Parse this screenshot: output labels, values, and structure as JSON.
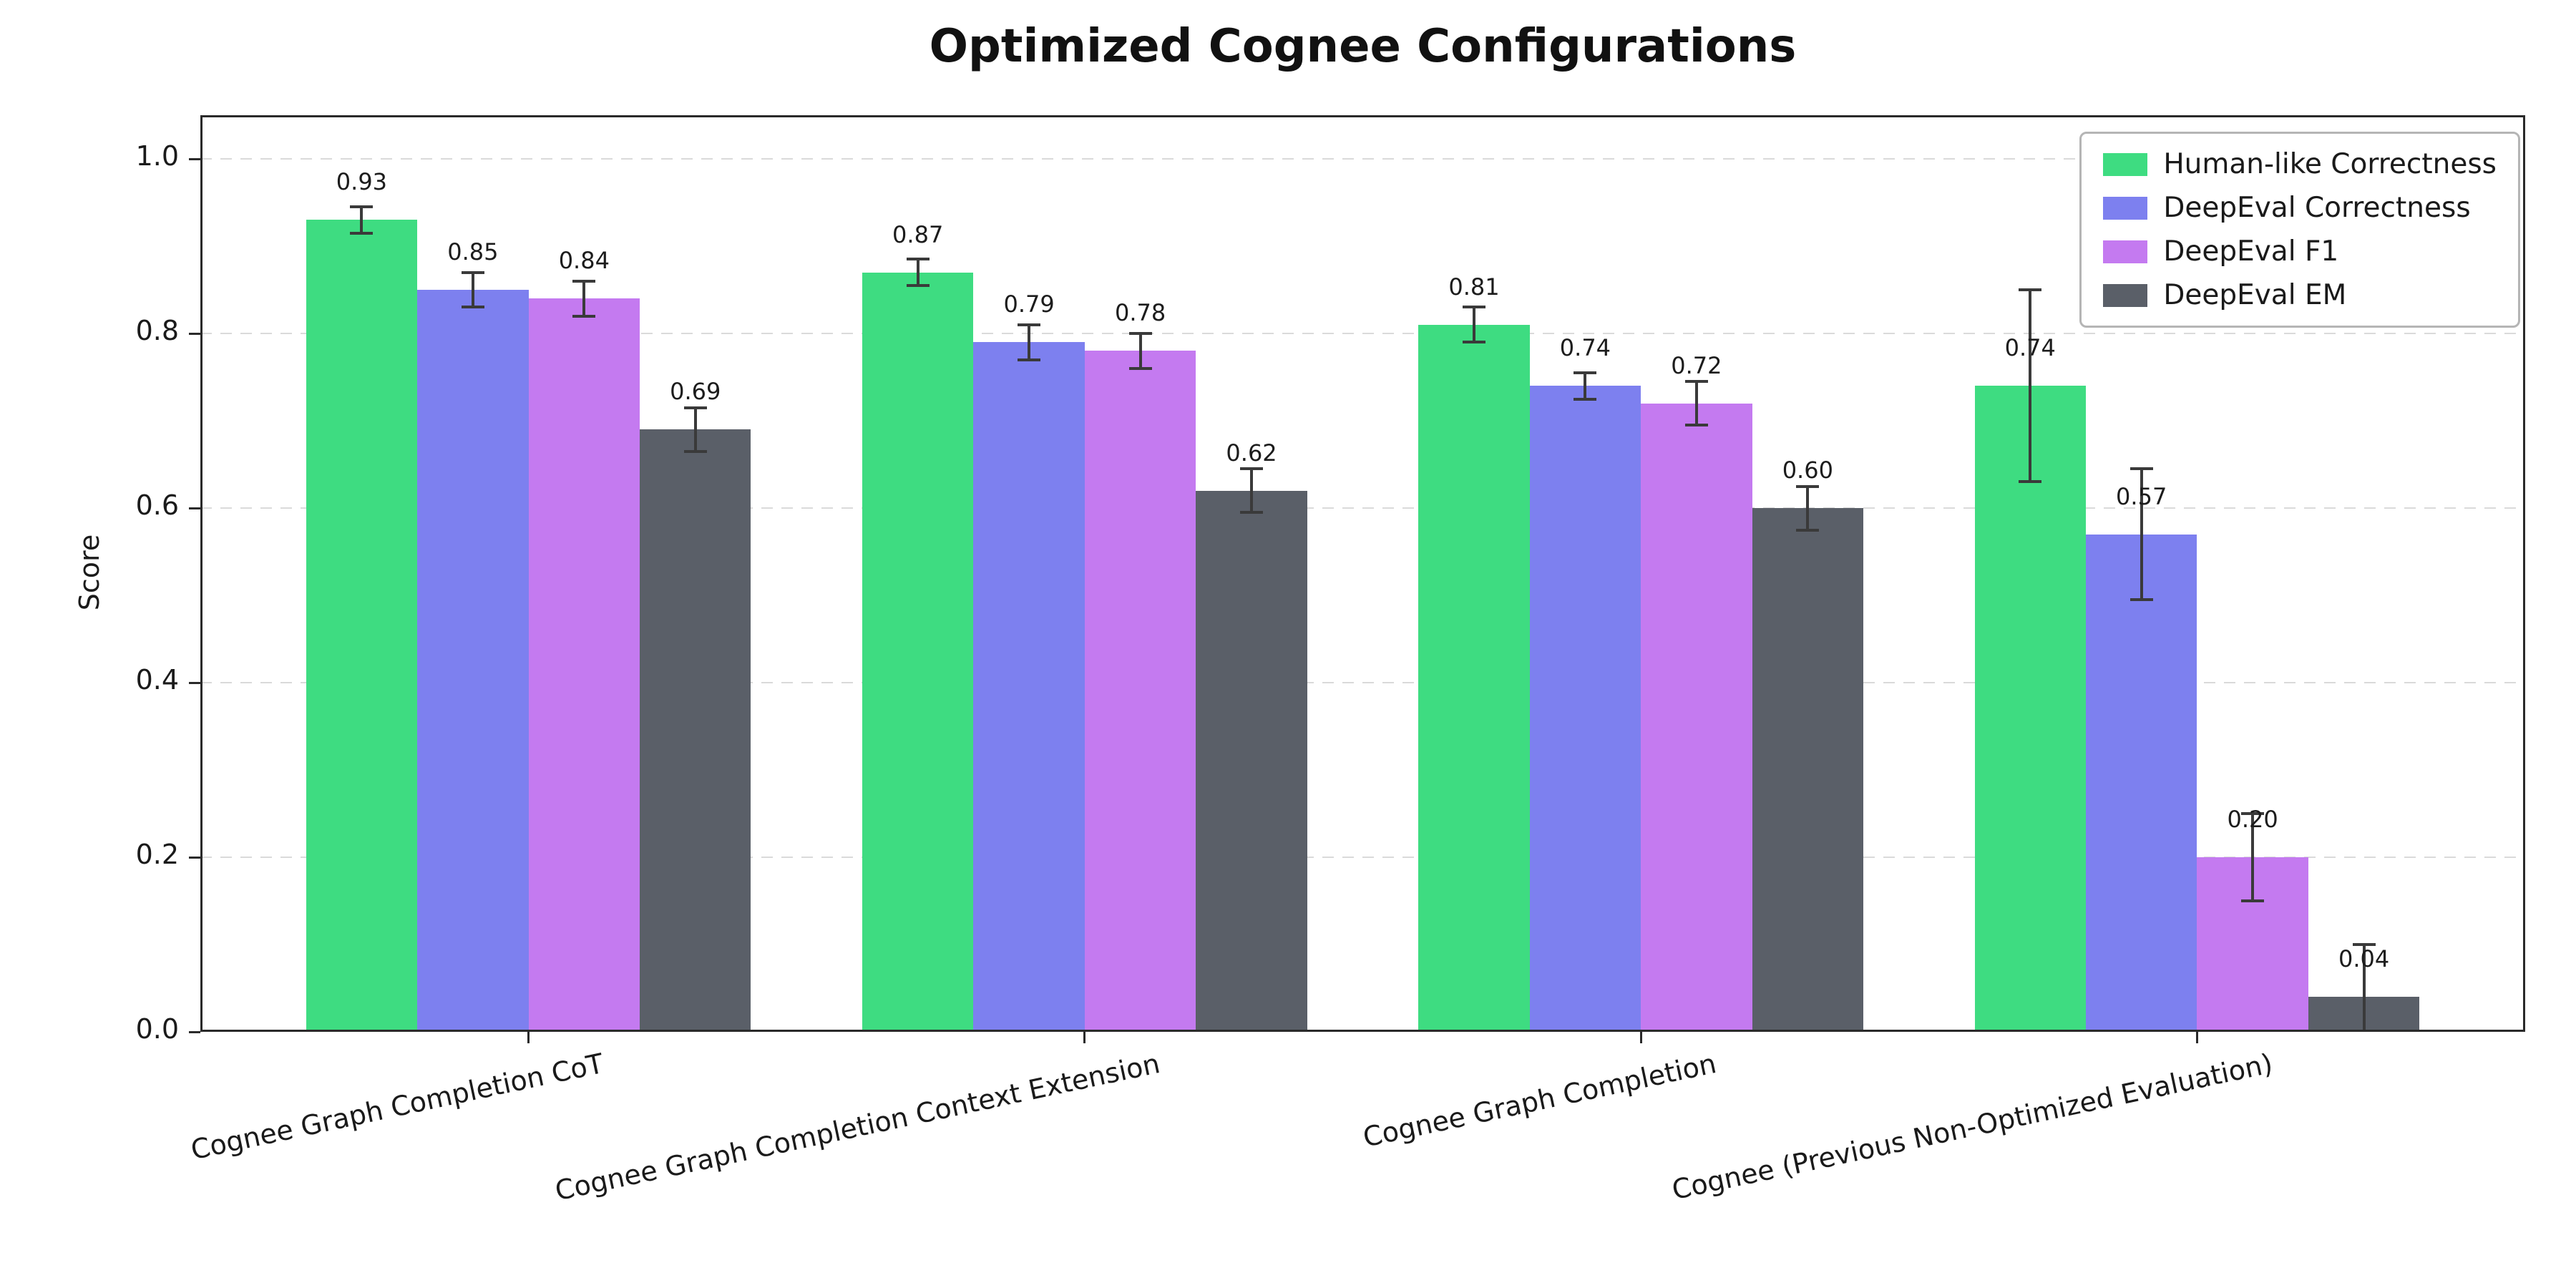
{
  "title": "Optimized Cognee Configurations",
  "chart_data": {
    "type": "bar",
    "title": "Optimized Cognee Configurations",
    "xlabel": "",
    "ylabel": "Score",
    "ylim": [
      0,
      1.05
    ],
    "yticks": [
      0.0,
      0.2,
      0.4,
      0.6,
      0.8,
      1.0
    ],
    "grid": "horizontal-dashed",
    "legend_position": "upper right",
    "categories": [
      "Cognee Graph Completion CoT",
      "Cognee Graph Completion Context Extension",
      "Cognee Graph Completion",
      "Cognee (Previous Non-Optimized Evaluation)"
    ],
    "series": [
      {
        "name": "Human-like Correctness",
        "color": "#3edc81",
        "values": [
          0.93,
          0.87,
          0.81,
          0.74
        ],
        "errors": [
          0.015,
          0.015,
          0.02,
          0.11
        ]
      },
      {
        "name": "DeepEval Correctness",
        "color": "#7d80ef",
        "values": [
          0.85,
          0.79,
          0.74,
          0.57
        ],
        "errors": [
          0.02,
          0.02,
          0.015,
          0.075
        ]
      },
      {
        "name": "DeepEval F1",
        "color": "#c47af0",
        "values": [
          0.84,
          0.78,
          0.72,
          0.2
        ],
        "errors": [
          0.02,
          0.02,
          0.025,
          0.05
        ]
      },
      {
        "name": "DeepEval EM",
        "color": "#5a5f68",
        "values": [
          0.69,
          0.62,
          0.6,
          0.04
        ],
        "errors": [
          0.025,
          0.025,
          0.025,
          0.06
        ]
      }
    ]
  }
}
